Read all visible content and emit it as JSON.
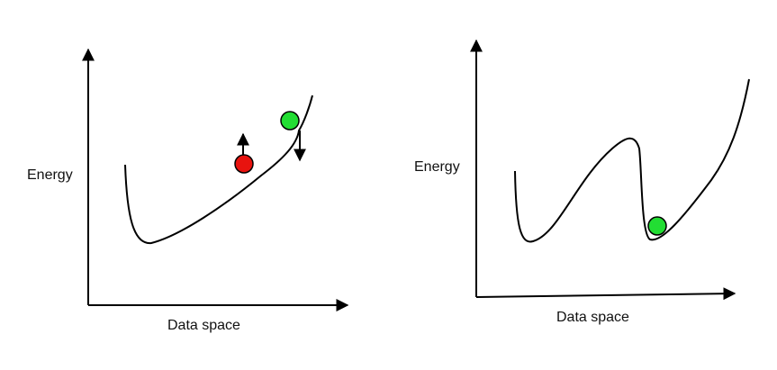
{
  "colors": {
    "line": "#000000",
    "red_ball": "#e8130f",
    "green_ball": "#22dd33",
    "ball_outline": "#000000",
    "background": "#ffffff"
  },
  "left_diagram": {
    "ylabel": "Energy",
    "xlabel": "Data space",
    "curve_shape": "single valley with rising slope",
    "balls": [
      {
        "color": "red",
        "arrow": "up"
      },
      {
        "color": "green",
        "arrow": "down"
      }
    ]
  },
  "right_diagram": {
    "ylabel": "Energy",
    "xlabel": "Data space",
    "curve_shape": "two valleys separated by a tall peak",
    "balls": [
      {
        "color": "green",
        "arrow": "none"
      }
    ]
  }
}
